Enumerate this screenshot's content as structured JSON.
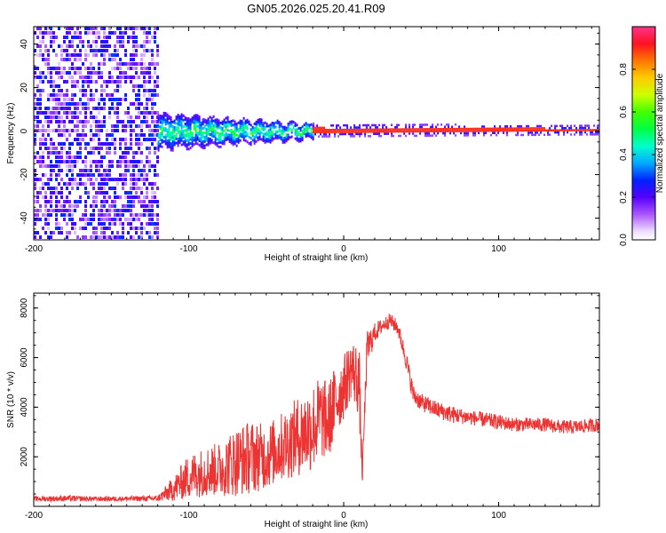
{
  "chart_data": [
    {
      "type": "heatmap",
      "title": "GN05.2026.025.20.41.R09",
      "xlabel": "Height of straight line (km)",
      "ylabel": "Frequency (Hz)",
      "xlim": [
        -200,
        165
      ],
      "ylim": [
        -50,
        48
      ],
      "x_ticks": [
        -200,
        -100,
        0,
        100
      ],
      "y_ticks": [
        -40,
        -20,
        0,
        20,
        40
      ],
      "x_tick_labels": [
        "-200",
        "-100",
        "0",
        "100"
      ],
      "y_tick_labels": [
        "-40",
        "-20",
        "0",
        "20",
        "40"
      ],
      "colorbar": {
        "label": "Normalized spectral amplitude",
        "range": [
          0,
          1
        ],
        "ticks": [
          0,
          0.2,
          0.4,
          0.6,
          0.8
        ],
        "tick_labels": [
          "0.0",
          "0.2",
          "0.4",
          "0.6",
          "0.8"
        ]
      },
      "regions": [
        {
          "name": "noise",
          "x": [
            -200,
            -120
          ],
          "freq": [
            -50,
            48
          ],
          "amplitude": [
            0.05,
            0.3
          ]
        },
        {
          "name": "transition",
          "x": [
            -120,
            -20
          ],
          "freq_center": 0,
          "freq_spread": [
            8,
            3
          ],
          "amplitude": [
            0.2,
            0.5
          ]
        },
        {
          "name": "carrier",
          "x": [
            -20,
            165
          ],
          "freq_center": 0.5,
          "freq_spread": [
            1.5,
            1
          ],
          "amplitude": [
            0.9,
            0.95
          ]
        }
      ],
      "grid": false
    },
    {
      "type": "line",
      "xlabel": "Height of straight line (km)",
      "ylabel": "SNR (10 * v/v)",
      "xlim": [
        -200,
        165
      ],
      "ylim": [
        0,
        8600
      ],
      "x_ticks": [
        -200,
        -100,
        0,
        100
      ],
      "y_ticks": [
        2000,
        4000,
        6000,
        8000
      ],
      "x_tick_labels": [
        "-200",
        "-100",
        "0",
        "100"
      ],
      "y_tick_labels": [
        "2000",
        "4000",
        "6000",
        "8000"
      ],
      "color": "#ee3333",
      "series": [
        {
          "name": "SNR",
          "x": [
            -200,
            -180,
            -160,
            -140,
            -120,
            -110,
            -100,
            -90,
            -80,
            -70,
            -60,
            -50,
            -40,
            -30,
            -20,
            -15,
            -10,
            -5,
            0,
            5,
            10,
            12,
            15,
            20,
            25,
            30,
            35,
            40,
            45,
            50,
            60,
            70,
            80,
            90,
            100,
            110,
            120,
            130,
            140,
            150,
            165
          ],
          "values": [
            300,
            320,
            300,
            310,
            320,
            700,
            1200,
            1400,
            1500,
            1800,
            2000,
            2000,
            2400,
            2800,
            3200,
            3600,
            3400,
            4300,
            4800,
            5600,
            5000,
            1200,
            6300,
            7000,
            7300,
            7500,
            7200,
            6000,
            4500,
            4200,
            3900,
            3700,
            3600,
            3500,
            3400,
            3300,
            3300,
            3300,
            3200,
            3200,
            3300
          ],
          "noise_amplitude": [
            100,
            120,
            100,
            100,
            120,
            500,
            900,
            1000,
            1100,
            1400,
            1500,
            1300,
            1400,
            1600,
            1800,
            1700,
            1600,
            1500,
            1300,
            1200,
            1500,
            400,
            800,
            400,
            300,
            300,
            300,
            400,
            400,
            350,
            350,
            350,
            300,
            300,
            300,
            280,
            280,
            280,
            280,
            280,
            280
          ]
        }
      ],
      "grid": false
    }
  ]
}
